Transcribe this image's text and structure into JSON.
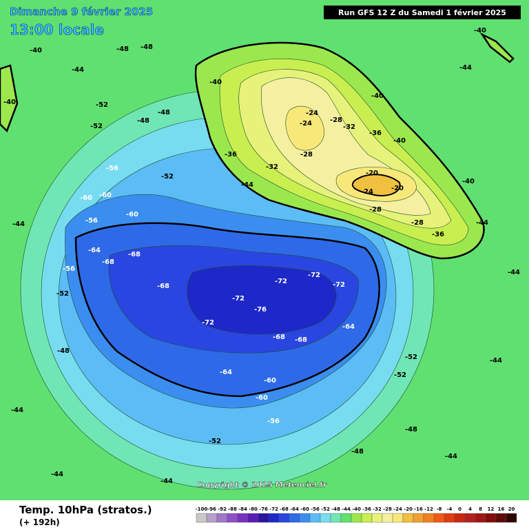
{
  "header": {
    "date": "Dimanche 9 février 2025",
    "local_time": "13:00 locale",
    "run": "Run GFS 12 Z du Samedi 1 février 2025"
  },
  "footer": {
    "title": "Temp. 10hPa (stratos.)",
    "lead": "(+ 192h)",
    "copyright": "Copyright © 2025 Meteociel.fr"
  },
  "legend": {
    "ticks": [
      -100,
      -96,
      -92,
      -88,
      -84,
      -80,
      -76,
      -72,
      -68,
      -64,
      -60,
      -56,
      -52,
      -48,
      -44,
      -40,
      -36,
      -32,
      -28,
      -24,
      -20,
      -16,
      -12,
      -8,
      -4,
      0,
      4,
      8,
      12,
      16,
      20
    ],
    "colors": [
      "#c8c8c8",
      "#b4a0c8",
      "#a078c8",
      "#8c50c8",
      "#7832c0",
      "#5a1eb4",
      "#2a14a0",
      "#1e28c8",
      "#2a46e0",
      "#2e6ae8",
      "#3b8ef0",
      "#5cbcf5",
      "#78dcf0",
      "#70e6b4",
      "#5ee36e",
      "#9be84e",
      "#c8ee50",
      "#e6f27a",
      "#f5f0a0",
      "#f8e87a",
      "#f0c040",
      "#f0a030",
      "#f08020",
      "#f05a14",
      "#e03c10",
      "#c82810",
      "#b41e1e",
      "#a01414",
      "#820a0a",
      "#600808",
      "#300404"
    ]
  },
  "contour_labels": [
    -40,
    -44,
    -48,
    -48,
    -44,
    -52,
    -52,
    -48,
    -40,
    -40,
    -40,
    -36,
    -32,
    -28,
    -24,
    -24,
    -28,
    -32,
    -36,
    -44,
    -20,
    -24,
    -20,
    -28,
    -28,
    -36,
    -40,
    -44,
    -56,
    -52,
    -60,
    -60,
    -56,
    -60,
    -64,
    -68,
    -68,
    -56,
    -52,
    -68,
    -72,
    -72,
    -76,
    -72,
    -72,
    -72,
    -68,
    -68,
    -64,
    -64,
    -60,
    -60,
    -56,
    -52,
    -48,
    -48,
    -44,
    -44,
    -44,
    -44,
    -44,
    -44,
    -52,
    -52,
    -48,
    -40,
    -44,
    -40,
    -48
  ]
}
